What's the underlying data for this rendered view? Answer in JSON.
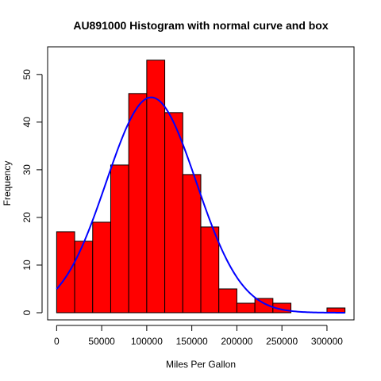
{
  "chart_data": {
    "type": "bar",
    "title": "AU891000 Histogram with normal curve and box",
    "xlabel": "Miles Per Gallon",
    "ylabel": "Frequency",
    "xlim": [
      -10000,
      330000
    ],
    "ylim": [
      -1.5,
      55.8
    ],
    "xticks": [
      0,
      50000,
      100000,
      150000,
      200000,
      250000,
      300000
    ],
    "xtick_labels": [
      "0",
      "50000",
      "100000",
      "150000",
      "200000",
      "250000",
      "300000"
    ],
    "yticks": [
      0,
      10,
      20,
      30,
      40,
      50
    ],
    "ytick_labels": [
      "0",
      "10",
      "20",
      "30",
      "40",
      "50"
    ],
    "bins": [
      {
        "x0": 0,
        "x1": 20000,
        "count": 17
      },
      {
        "x0": 20000,
        "x1": 40000,
        "count": 15
      },
      {
        "x0": 40000,
        "x1": 60000,
        "count": 19
      },
      {
        "x0": 60000,
        "x1": 80000,
        "count": 31
      },
      {
        "x0": 80000,
        "x1": 100000,
        "count": 46
      },
      {
        "x0": 100000,
        "x1": 120000,
        "count": 53
      },
      {
        "x0": 120000,
        "x1": 140000,
        "count": 42
      },
      {
        "x0": 140000,
        "x1": 160000,
        "count": 29
      },
      {
        "x0": 160000,
        "x1": 180000,
        "count": 18
      },
      {
        "x0": 180000,
        "x1": 200000,
        "count": 5
      },
      {
        "x0": 200000,
        "x1": 220000,
        "count": 2
      },
      {
        "x0": 220000,
        "x1": 240000,
        "count": 3
      },
      {
        "x0": 240000,
        "x1": 260000,
        "count": 2
      },
      {
        "x0": 260000,
        "x1": 280000,
        "count": 0
      },
      {
        "x0": 280000,
        "x1": 300000,
        "count": 0
      },
      {
        "x0": 300000,
        "x1": 320000,
        "count": 1
      }
    ],
    "normal_curve": {
      "mean": 105000,
      "sd": 50000,
      "peak": 45.2,
      "x_range": [
        0,
        320000
      ]
    },
    "colors": {
      "bar_fill": "#ff0000",
      "bar_stroke": "#000000",
      "curve": "#0000ff",
      "box": "#000000"
    },
    "grid": false,
    "legend": "none"
  }
}
